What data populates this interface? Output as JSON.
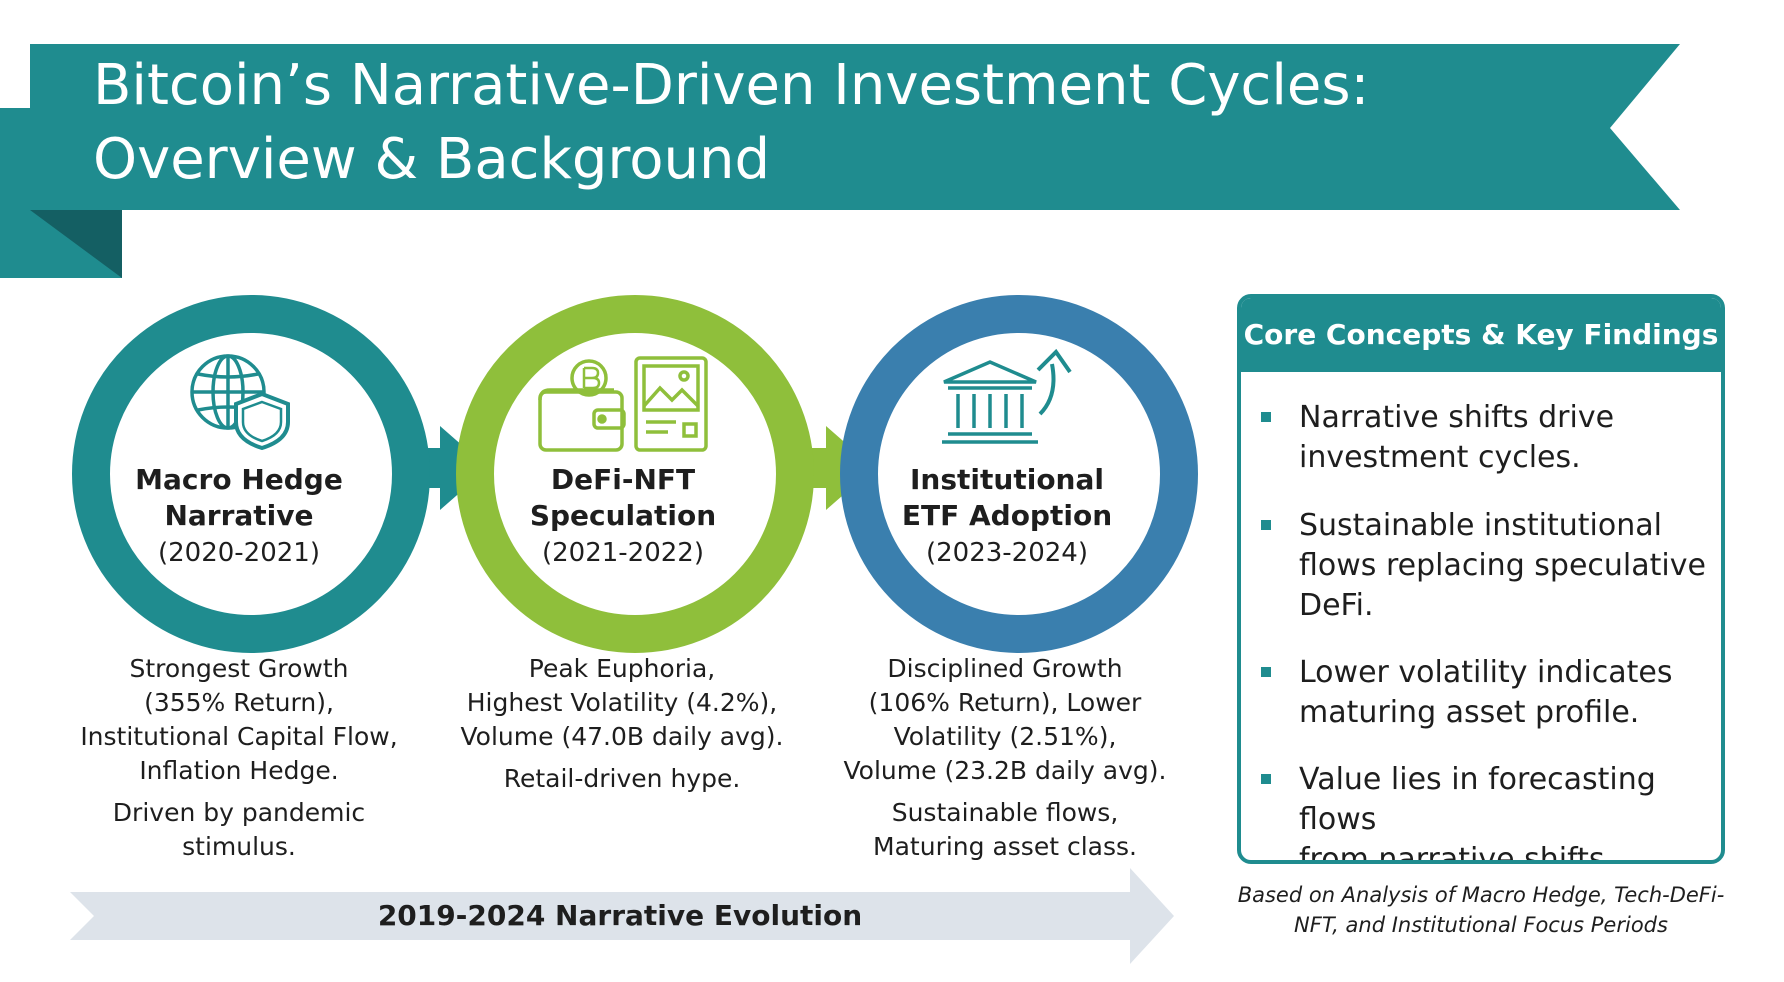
{
  "title": {
    "line1": "Bitcoin’s Narrative-Driven Investment Cycles:",
    "line2": "Overview & Background"
  },
  "colors": {
    "teal": "#1f8c8f",
    "teal_dark": "#145f63",
    "green": "#8fbf3b",
    "blue": "#3a7fae",
    "timeline": "#dde3ea"
  },
  "cycles": [
    {
      "name_line1": "Macro Hedge",
      "name_line2": "Narrative",
      "period": "(2020-2021)",
      "icon": "globe-shield-icon",
      "desc_main": [
        "Strongest Growth",
        "(355% Return),",
        "Institutional Capital Flow,",
        "Inflation Hedge."
      ],
      "desc_extra": [
        "Driven by pandemic",
        "stimulus."
      ]
    },
    {
      "name_line1": "DeFi-NFT",
      "name_line2": "Speculation",
      "period": "(2021-2022)",
      "icon": "wallet-nft-icon",
      "desc_main": [
        "Peak Euphoria,",
        "Highest Volatility (4.2%),",
        "Volume (47.0B daily avg)."
      ],
      "desc_extra": [
        "Retail-driven hype."
      ]
    },
    {
      "name_line1": "Institutional",
      "name_line2": "ETF Adoption",
      "period": "(2023-2024)",
      "icon": "bank-growth-icon",
      "desc_main": [
        "Disciplined Growth",
        "(106% Return), Lower",
        "Volatility (2.51%),",
        "Volume (23.2B daily avg)."
      ],
      "desc_extra": [
        "Sustainable flows,",
        "Maturing asset class."
      ]
    }
  ],
  "timeline": {
    "label": "2019-2024 Narrative Evolution"
  },
  "findings": {
    "title": "Core Concepts & Key Findings",
    "items": [
      [
        "Narrative shifts drive",
        "investment cycles."
      ],
      [
        "Sustainable institutional",
        "flows replacing speculative",
        "DeFi."
      ],
      [
        "Lower volatility indicates",
        "maturing asset profile."
      ],
      [
        "Value lies in forecasting flows",
        "from narrative shifts."
      ]
    ]
  },
  "source_note": {
    "line1": "Based on Analysis of Macro Hedge, Tech-DeFi-",
    "line2": "NFT, and Institutional Focus Periods"
  }
}
